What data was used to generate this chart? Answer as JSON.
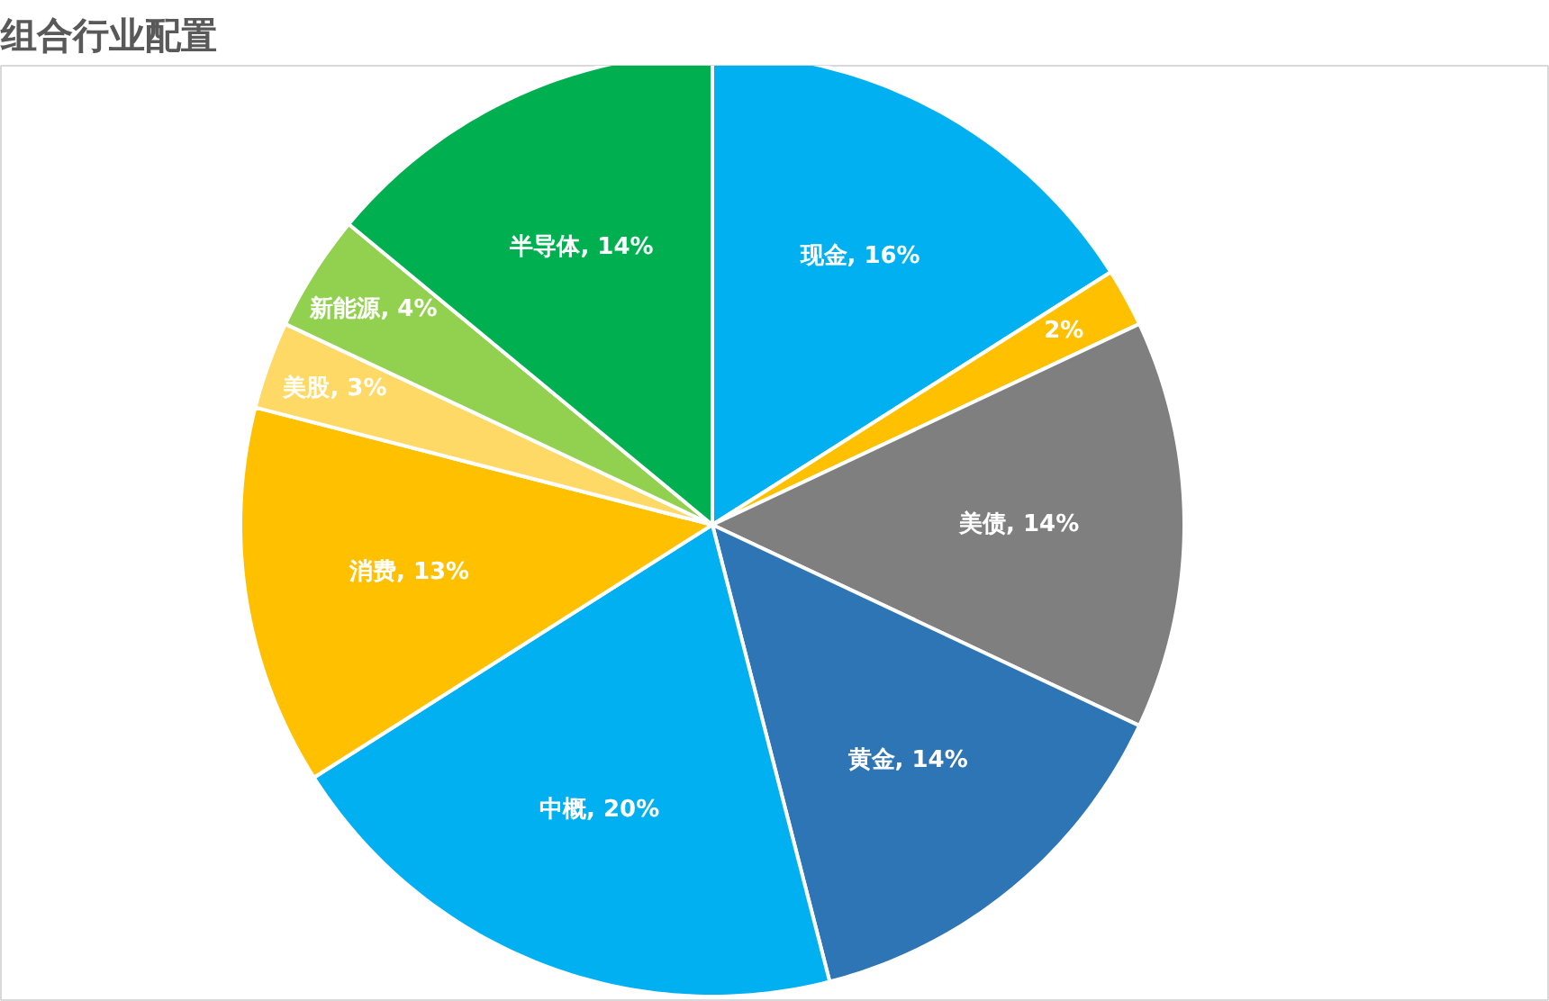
{
  "chart_data": {
    "type": "pie",
    "title": "组合行业配置",
    "categories": [
      "现金",
      null,
      "美债",
      "黄金",
      "中概",
      "消费",
      "美股",
      "新能源",
      "半导体"
    ],
    "values": [
      16,
      2,
      14,
      14,
      20,
      13,
      3,
      4,
      14
    ],
    "colors": [
      "#00b0f0",
      "#ffc000",
      "#7f7f7f",
      "#2e75b6",
      "#00b0f0",
      "#ffc000",
      "#ffd966",
      "#92d050",
      "#00b050"
    ],
    "value_labels": [
      "16%",
      "2%",
      "14%",
      "14%",
      "20%",
      "13%",
      "3%",
      "4%",
      "14%"
    ]
  }
}
